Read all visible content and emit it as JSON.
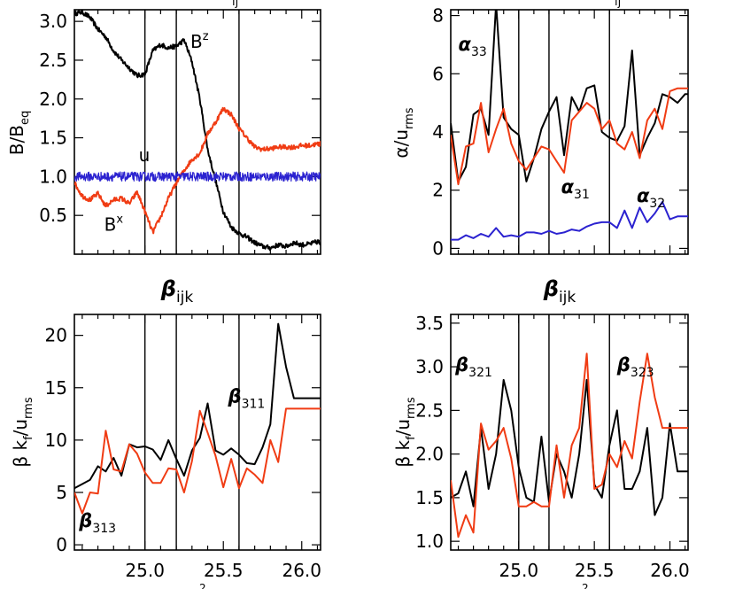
{
  "colors": {
    "black": "#000000",
    "red": "#f03c14",
    "blue": "#2b22d0"
  },
  "chart_data": [
    {
      "type": "line",
      "panel": "top-left",
      "title": "",
      "ylabel": "B/B_eq",
      "xlim": [
        24.55,
        26.12
      ],
      "ylim": [
        0,
        3.15
      ],
      "yticks": [
        0.5,
        1.0,
        1.5,
        2.0,
        2.5,
        3.0
      ],
      "ytick_labels": [
        "0.5",
        "1.0",
        "1.5",
        "2.0",
        "2.5",
        "3.0"
      ],
      "vlines": [
        25.0,
        25.2,
        25.6
      ],
      "series": [
        {
          "name": "Bz",
          "color": "#000000",
          "x": [
            24.55,
            24.6,
            24.65,
            24.7,
            24.75,
            24.8,
            24.85,
            24.9,
            24.95,
            25.0,
            25.05,
            25.1,
            25.15,
            25.2,
            25.25,
            25.3,
            25.35,
            25.4,
            25.45,
            25.5,
            25.55,
            25.6,
            25.65,
            25.7,
            25.75,
            25.8,
            25.85,
            25.9,
            25.95,
            26.0,
            26.05,
            26.1,
            26.12
          ],
          "values": [
            3.1,
            3.12,
            3.05,
            2.9,
            2.8,
            2.62,
            2.5,
            2.4,
            2.3,
            2.32,
            2.62,
            2.7,
            2.66,
            2.68,
            2.76,
            2.48,
            2.0,
            1.35,
            0.95,
            0.55,
            0.35,
            0.27,
            0.22,
            0.15,
            0.1,
            0.08,
            0.12,
            0.1,
            0.15,
            0.12,
            0.13,
            0.16,
            0.15
          ]
        },
        {
          "name": "Bx",
          "color": "#f03c14",
          "x": [
            24.55,
            24.6,
            24.65,
            24.7,
            24.75,
            24.8,
            24.85,
            24.9,
            24.95,
            25.0,
            25.05,
            25.1,
            25.15,
            25.2,
            25.25,
            25.3,
            25.35,
            25.4,
            25.45,
            25.5,
            25.55,
            25.6,
            25.65,
            25.7,
            25.75,
            25.8,
            25.85,
            25.9,
            25.95,
            26.0,
            26.05,
            26.1,
            26.12
          ],
          "values": [
            0.92,
            0.75,
            0.7,
            0.78,
            0.62,
            0.7,
            0.72,
            0.65,
            0.8,
            0.55,
            0.28,
            0.48,
            0.72,
            0.92,
            1.08,
            1.22,
            1.3,
            1.55,
            1.7,
            1.88,
            1.8,
            1.62,
            1.5,
            1.38,
            1.35,
            1.36,
            1.38,
            1.38,
            1.38,
            1.4,
            1.4,
            1.42,
            1.42
          ]
        },
        {
          "name": "u",
          "color": "#2b22d0",
          "baseline": 1.0,
          "jitter": 0.06
        }
      ],
      "annotations": [
        {
          "text": "B",
          "sup": "z",
          "x": 25.29,
          "y": 2.66
        },
        {
          "text": "u",
          "x": 24.96,
          "y": 1.2
        },
        {
          "text": "B",
          "sup": "x",
          "x": 24.74,
          "y": 0.3
        }
      ],
      "partial_top_text": "ij"
    },
    {
      "type": "line",
      "panel": "top-right",
      "title": "",
      "ylabel": "α/u_rms",
      "xlim": [
        24.55,
        26.12
      ],
      "ylim": [
        -0.2,
        8.2
      ],
      "yticks": [
        0,
        2,
        4,
        6,
        8
      ],
      "ytick_labels": [
        "0",
        "2",
        "4",
        "6",
        "8"
      ],
      "vlines": [
        25.0,
        25.2,
        25.6
      ],
      "series": [
        {
          "name": "α33",
          "color": "#000000",
          "x": [
            24.55,
            24.6,
            24.65,
            24.7,
            24.75,
            24.8,
            24.85,
            24.9,
            24.95,
            25.0,
            25.05,
            25.1,
            25.15,
            25.2,
            25.25,
            25.3,
            25.35,
            25.4,
            25.45,
            25.5,
            25.55,
            25.6,
            25.65,
            25.7,
            25.75,
            25.8,
            25.85,
            25.9,
            25.95,
            26.0,
            26.05,
            26.1,
            26.12
          ],
          "values": [
            4.3,
            2.3,
            2.8,
            4.6,
            4.8,
            3.9,
            8.4,
            4.5,
            4.1,
            3.9,
            2.3,
            3.1,
            4.1,
            4.7,
            5.2,
            3.2,
            5.2,
            4.7,
            5.5,
            5.6,
            4.0,
            3.8,
            3.7,
            4.2,
            6.8,
            3.2,
            3.8,
            4.3,
            5.3,
            5.2,
            5.0,
            5.3,
            5.3
          ]
        },
        {
          "name": "α31",
          "color": "#f03c14",
          "x": [
            24.55,
            24.6,
            24.65,
            24.7,
            24.75,
            24.8,
            24.85,
            24.9,
            24.95,
            25.0,
            25.05,
            25.1,
            25.15,
            25.2,
            25.25,
            25.3,
            25.35,
            25.4,
            25.45,
            25.5,
            25.55,
            25.6,
            25.65,
            25.7,
            25.75,
            25.8,
            25.85,
            25.9,
            25.95,
            26.0,
            26.05,
            26.1,
            26.12
          ],
          "values": [
            3.9,
            2.2,
            3.5,
            3.6,
            5.0,
            3.3,
            4.1,
            4.8,
            3.6,
            3.0,
            2.7,
            3.1,
            3.5,
            3.4,
            3.0,
            2.6,
            4.4,
            4.7,
            5.0,
            4.8,
            4.1,
            4.4,
            3.6,
            3.4,
            4.0,
            3.1,
            4.4,
            4.8,
            4.1,
            5.4,
            5.5,
            5.5,
            5.5
          ]
        },
        {
          "name": "α32",
          "color": "#2b22d0",
          "x": [
            24.55,
            24.6,
            24.65,
            24.7,
            24.75,
            24.8,
            24.85,
            24.9,
            24.95,
            25.0,
            25.05,
            25.1,
            25.15,
            25.2,
            25.25,
            25.3,
            25.35,
            25.4,
            25.45,
            25.5,
            25.55,
            25.6,
            25.65,
            25.7,
            25.75,
            25.8,
            25.85,
            25.9,
            25.95,
            26.0,
            26.05,
            26.1,
            26.12
          ],
          "values": [
            0.3,
            0.3,
            0.45,
            0.35,
            0.5,
            0.4,
            0.7,
            0.4,
            0.45,
            0.4,
            0.55,
            0.55,
            0.5,
            0.6,
            0.5,
            0.55,
            0.65,
            0.6,
            0.75,
            0.85,
            0.9,
            0.9,
            0.7,
            1.3,
            0.7,
            1.4,
            0.9,
            1.2,
            1.6,
            1.0,
            1.1,
            1.1,
            1.1
          ]
        }
      ],
      "annotations": [
        {
          "text": "α",
          "sub": "33",
          "x": 24.6,
          "y": 6.8
        },
        {
          "text": "α",
          "sub": "31",
          "x": 25.28,
          "y": 1.9
        },
        {
          "text": "α",
          "sub": "32",
          "x": 25.78,
          "y": 1.6
        }
      ],
      "partial_top_text": "ij"
    },
    {
      "type": "line",
      "panel": "bottom-left",
      "title": "β_ijk",
      "ylabel": "β k_f/u_rms",
      "xlim": [
        24.55,
        26.12
      ],
      "xticks": [
        25.0,
        25.5,
        26.0
      ],
      "xtick_labels": [
        "25.0",
        "25.5",
        "26.0"
      ],
      "ylim": [
        -0.5,
        22
      ],
      "yticks": [
        0,
        5,
        10,
        15,
        20
      ],
      "ytick_labels": [
        "0",
        "5",
        "10",
        "15",
        "20"
      ],
      "vlines": [
        25.0,
        25.2,
        25.6
      ],
      "series": [
        {
          "name": "β311",
          "color": "#000000",
          "x": [
            24.55,
            24.6,
            24.65,
            24.7,
            24.75,
            24.8,
            24.85,
            24.9,
            24.95,
            25.0,
            25.05,
            25.1,
            25.15,
            25.2,
            25.25,
            25.3,
            25.35,
            25.4,
            25.45,
            25.5,
            25.55,
            25.6,
            25.65,
            25.7,
            25.75,
            25.8,
            25.85,
            25.9,
            25.95,
            26.0,
            26.05,
            26.1,
            26.12
          ],
          "values": [
            5.4,
            5.8,
            6.2,
            7.5,
            7.0,
            8.3,
            6.6,
            9.6,
            9.3,
            9.4,
            9.1,
            8.1,
            10.0,
            8.2,
            6.6,
            9.0,
            10.2,
            13.5,
            9.0,
            8.6,
            9.2,
            8.6,
            7.8,
            7.7,
            9.3,
            11.5,
            21.1,
            17.0,
            14.0,
            14.0,
            14.0,
            14.0,
            14.0
          ]
        },
        {
          "name": "β313",
          "color": "#f03c14",
          "x": [
            24.55,
            24.6,
            24.65,
            24.7,
            24.75,
            24.8,
            24.85,
            24.9,
            24.95,
            25.0,
            25.05,
            25.1,
            25.15,
            25.2,
            25.25,
            25.3,
            25.35,
            25.4,
            25.45,
            25.5,
            25.55,
            25.6,
            25.65,
            25.7,
            25.75,
            25.8,
            25.85,
            25.9,
            25.95,
            26.0,
            26.05,
            26.1,
            26.12
          ],
          "values": [
            5.0,
            3.0,
            5.0,
            4.9,
            10.9,
            7.2,
            7.0,
            9.6,
            8.7,
            6.9,
            5.9,
            5.9,
            7.3,
            7.2,
            5.0,
            8.0,
            12.8,
            10.7,
            8.5,
            5.5,
            8.2,
            5.4,
            7.3,
            6.7,
            5.9,
            10.0,
            7.9,
            13.0,
            13.0,
            13.0,
            13.0,
            13.0,
            13.0
          ]
        }
      ],
      "annotations": [
        {
          "text": "β",
          "sub": "311",
          "x": 25.53,
          "y": 13.6
        },
        {
          "text": "β",
          "sub": "313",
          "x": 24.58,
          "y": 1.7
        }
      ]
    },
    {
      "type": "line",
      "panel": "bottom-right",
      "title": "β_ijk",
      "ylabel": "β k_f/u_rms",
      "xlim": [
        24.55,
        26.12
      ],
      "xticks": [
        25.0,
        25.5,
        26.0
      ],
      "xtick_labels": [
        "25.0",
        "25.5",
        "26.0"
      ],
      "ylim": [
        0.9,
        3.6
      ],
      "yticks": [
        1.0,
        1.5,
        2.0,
        2.5,
        3.0,
        3.5
      ],
      "ytick_labels": [
        "1.0",
        "1.5",
        "2.0",
        "2.5",
        "3.0",
        "3.5"
      ],
      "vlines": [
        25.0,
        25.2,
        25.6
      ],
      "series": [
        {
          "name": "β321",
          "color": "#000000",
          "x": [
            24.55,
            24.6,
            24.65,
            24.7,
            24.75,
            24.8,
            24.85,
            24.9,
            24.95,
            25.0,
            25.05,
            25.1,
            25.15,
            25.2,
            25.25,
            25.3,
            25.35,
            25.4,
            25.45,
            25.5,
            25.55,
            25.6,
            25.65,
            25.7,
            25.75,
            25.8,
            25.85,
            25.9,
            25.95,
            26.0,
            26.05,
            26.1,
            26.12
          ],
          "values": [
            1.5,
            1.55,
            1.8,
            1.4,
            2.3,
            1.6,
            2.0,
            2.85,
            2.5,
            1.85,
            1.5,
            1.45,
            2.2,
            1.45,
            2.0,
            1.8,
            1.5,
            2.0,
            2.85,
            1.65,
            1.5,
            2.1,
            2.5,
            1.6,
            1.6,
            1.8,
            2.3,
            1.3,
            1.5,
            2.35,
            1.8,
            1.8,
            1.8
          ]
        },
        {
          "name": "β323",
          "color": "#f03c14",
          "x": [
            24.55,
            24.6,
            24.65,
            24.7,
            24.75,
            24.8,
            24.85,
            24.9,
            24.95,
            25.0,
            25.05,
            25.1,
            25.15,
            25.2,
            25.25,
            25.3,
            25.35,
            25.4,
            25.45,
            25.5,
            25.55,
            25.6,
            25.65,
            25.7,
            25.75,
            25.8,
            25.85,
            25.9,
            25.95,
            26.0,
            26.05,
            26.1,
            26.12
          ],
          "values": [
            1.7,
            1.05,
            1.3,
            1.1,
            2.35,
            2.05,
            2.15,
            2.3,
            1.95,
            1.4,
            1.4,
            1.45,
            1.4,
            1.4,
            2.1,
            1.5,
            2.1,
            2.3,
            3.15,
            1.6,
            1.65,
            2.0,
            1.85,
            2.15,
            1.95,
            2.6,
            3.15,
            2.65,
            2.3,
            2.3,
            2.3,
            2.3,
            2.3
          ]
        }
      ],
      "annotations": [
        {
          "text": "β",
          "sub": "321",
          "x": 24.58,
          "y": 2.95
        },
        {
          "text": "β",
          "sub": "323",
          "x": 25.65,
          "y": 2.95
        }
      ]
    }
  ],
  "labels": {
    "top_left_ylabel_main": "B/B",
    "top_left_ylabel_sub": "eq",
    "top_right_ylabel_main": "α/u",
    "top_right_ylabel_sub": "rms",
    "bottom_ylabel_main": "β k",
    "bottom_ylabel_sub1": "f",
    "bottom_ylabel_mid": "/u",
    "bottom_ylabel_sub2": "rms",
    "bottom_title_main": "β",
    "bottom_title_sub": "ijk",
    "top_partial_sub": "ij",
    "bottom_xlabel_partial": "2"
  }
}
